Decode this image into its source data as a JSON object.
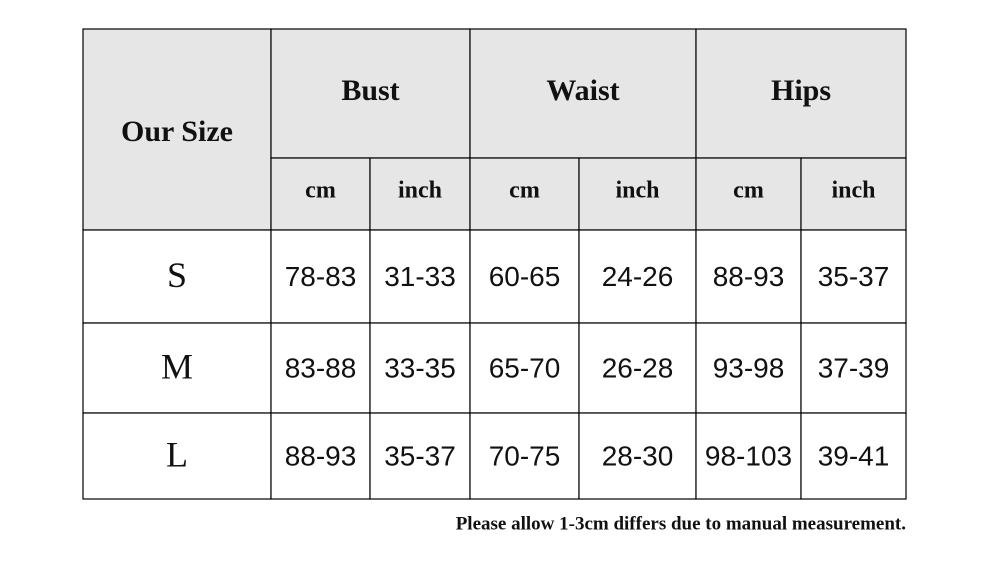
{
  "table": {
    "header": {
      "size": "Our Size",
      "groups": [
        "Bust",
        "Waist",
        "Hips"
      ],
      "units": [
        "cm",
        "inch",
        "cm",
        "inch",
        "cm",
        "inch"
      ]
    },
    "rows": [
      [
        "S",
        "78-83",
        "31-33",
        "60-65",
        "24-26",
        "88-93",
        "35-37"
      ],
      [
        "M",
        "83-88",
        "33-35",
        "65-70",
        "26-28",
        "93-98",
        "37-39"
      ],
      [
        "L",
        "88-93",
        "35-37",
        "70-75",
        "28-30",
        "98-103",
        "39-41"
      ]
    ]
  },
  "note": "Please allow 1-3cm differs due to manual measurement."
}
